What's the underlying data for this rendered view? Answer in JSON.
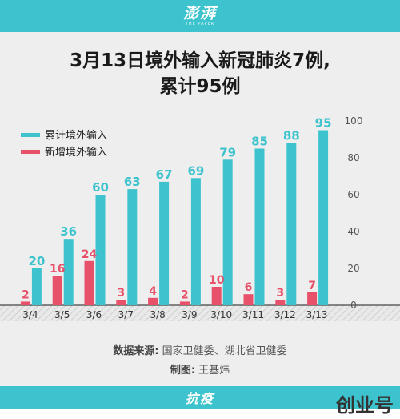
{
  "brand": {
    "logo": "澎湃",
    "logo_sub": "THE PAPER"
  },
  "title_line1": "3月13日境外输入新冠肺炎7例,",
  "title_line2": "累计95例",
  "chart_data": {
    "type": "bar",
    "categories": [
      "3/4",
      "3/5",
      "3/6",
      "3/7",
      "3/8",
      "3/9",
      "3/10",
      "3/11",
      "3/12",
      "3/13"
    ],
    "series": [
      {
        "name": "累计境外输入",
        "values": [
          20,
          36,
          60,
          63,
          67,
          69,
          79,
          85,
          88,
          95
        ],
        "color": "#3cc3cd"
      },
      {
        "name": "新增境外输入",
        "values": [
          2,
          16,
          24,
          3,
          4,
          2,
          10,
          6,
          3,
          7
        ],
        "color": "#e8516a"
      }
    ],
    "ylim": [
      0,
      100
    ],
    "yticks": [
      0,
      20,
      40,
      60,
      80,
      100
    ],
    "y_axis_side": "right",
    "legend_position": "top-left",
    "grid": false
  },
  "source_label": "数据来源:",
  "source_value": "国家卫健委、湖北省卫健委",
  "maker_label": "制图:",
  "maker_value": "王基炜",
  "bottom_banner": "抗疫",
  "watermark": "创业号"
}
